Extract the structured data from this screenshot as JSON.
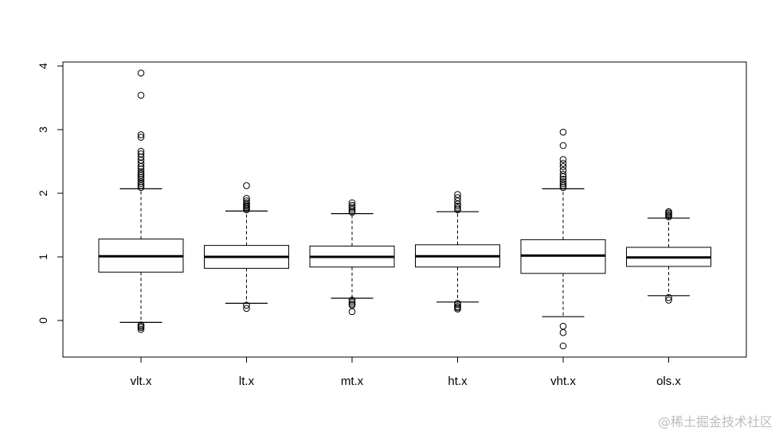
{
  "chart_data": {
    "type": "boxplot",
    "title": "",
    "xlabel": "",
    "ylabel": "",
    "categories": [
      "vlt.x",
      "lt.x",
      "mt.x",
      "ht.x",
      "vht.x",
      "ols.x"
    ],
    "ylim": [
      -0.6,
      4.0
    ],
    "yticks": [
      "0",
      "1",
      "2",
      "3",
      "4"
    ],
    "grid": false,
    "boxes": [
      {
        "name": "vlt.x",
        "whisker_low": -0.03,
        "q1": 0.76,
        "median": 1.01,
        "q3": 1.28,
        "whisker_high": 2.07,
        "outliers": [
          -0.07,
          -0.09,
          -0.11,
          -0.14,
          2.09,
          2.12,
          2.15,
          2.18,
          2.22,
          2.25,
          2.28,
          2.31,
          2.34,
          2.38,
          2.42,
          2.47,
          2.52,
          2.57,
          2.62,
          2.66,
          2.88,
          2.92,
          3.54,
          3.89
        ]
      },
      {
        "name": "lt.x",
        "whisker_low": 0.27,
        "q1": 0.82,
        "median": 1.0,
        "q3": 1.18,
        "whisker_high": 1.72,
        "outliers": [
          0.24,
          0.19,
          1.74,
          1.76,
          1.78,
          1.8,
          1.82,
          1.85,
          1.88,
          1.92,
          2.12
        ]
      },
      {
        "name": "mt.x",
        "whisker_low": 0.35,
        "q1": 0.84,
        "median": 1.0,
        "q3": 1.17,
        "whisker_high": 1.68,
        "outliers": [
          0.32,
          0.29,
          0.26,
          0.24,
          0.14,
          1.7,
          1.72,
          1.75,
          1.78,
          1.81,
          1.85
        ]
      },
      {
        "name": "ht.x",
        "whisker_low": 0.29,
        "q1": 0.84,
        "median": 1.01,
        "q3": 1.19,
        "whisker_high": 1.71,
        "outliers": [
          0.27,
          0.25,
          0.22,
          0.2,
          0.18,
          1.74,
          1.77,
          1.8,
          1.83,
          1.88,
          1.93,
          1.98
        ]
      },
      {
        "name": "vht.x",
        "whisker_low": 0.06,
        "q1": 0.74,
        "median": 1.02,
        "q3": 1.27,
        "whisker_high": 2.07,
        "outliers": [
          -0.09,
          -0.19,
          -0.4,
          2.09,
          2.12,
          2.15,
          2.18,
          2.22,
          2.26,
          2.3,
          2.36,
          2.42,
          2.47,
          2.53,
          2.75,
          2.96
        ]
      },
      {
        "name": "ols.x",
        "whisker_low": 0.39,
        "q1": 0.85,
        "median": 0.99,
        "q3": 1.15,
        "whisker_high": 1.61,
        "outliers": [
          0.36,
          0.32,
          1.63,
          1.65,
          1.67,
          1.69,
          1.71
        ]
      }
    ]
  },
  "watermark": "@稀土掘金技术社区"
}
